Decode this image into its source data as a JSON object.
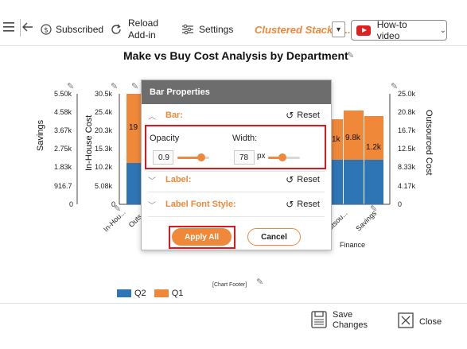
{
  "toolbar": {
    "subscribed_label": "Subscribed",
    "reload_label": "Reload\nAdd-in",
    "reload_line1": "Reload",
    "reload_line2": "Add-in",
    "settings_label": "Settings",
    "chart_type_label": "Clustered Stacked...",
    "howto_label": "How-to video"
  },
  "chart": {
    "title": "Make vs Buy Cost Analysis by Department",
    "left_axis1_title": "Savings",
    "left_axis2_title": "In-House Cost",
    "right_axis_title": "Outsourced Cost",
    "savings_ticks": [
      "5.50k",
      "4.58k",
      "3.67k",
      "2.75k",
      "1.83k",
      "916.7",
      "0"
    ],
    "inhouse_ticks": [
      "30.5k",
      "25.4k",
      "20.3k",
      "15.3k",
      "10.2k",
      "5.08k",
      "0"
    ],
    "outsourced_ticks": [
      "25.0k",
      "20.8k",
      "16.7k",
      "12.5k",
      "8.33k",
      "4.17k",
      "0"
    ],
    "x_labels_visible": [
      "In-Hou...",
      "Outs...",
      "Outsou...",
      "Savings"
    ],
    "group_label": "Finance",
    "bar_labels": [
      "19",
      "1k",
      "9.8k",
      "1.2k"
    ],
    "legend": [
      {
        "name": "Q2",
        "color": "#2e75b6"
      },
      {
        "name": "Q1",
        "color": "#f0883a"
      }
    ],
    "footer": "[Chart Footer]"
  },
  "chart_data": {
    "type": "bar",
    "title": "Make vs Buy Cost Analysis by Department",
    "ylabel_left": "In-House Cost",
    "ylabel_left_secondary": "Savings",
    "ylabel_right": "Outsourced Cost",
    "series": [
      {
        "name": "Q2",
        "color": "#2e75b6"
      },
      {
        "name": "Q1",
        "color": "#f0883a"
      }
    ],
    "ylim_inhouse": [
      0,
      30500
    ],
    "ylim_outsourced": [
      0,
      25000
    ],
    "ylim_savings": [
      0,
      5500
    ],
    "visible_data_labels": [
      "19",
      "1k",
      "9.8k",
      "1.2k"
    ]
  },
  "dialog": {
    "title": "Bar Properties",
    "sections": {
      "bar": "Bar:",
      "label": "Label:",
      "label_font": "Label Font Style:"
    },
    "reset_label": "Reset",
    "opacity_label": "Opacity",
    "opacity_value": "0.9",
    "opacity_level": 0.9,
    "width_label": "Width:",
    "width_value": "78",
    "width_unit": "px",
    "apply_label": "Apply All",
    "cancel_label": "Cancel"
  },
  "bottom": {
    "save_label_line1": "Save",
    "save_label_line2": "Changes",
    "close_label": "Close"
  },
  "colors": {
    "accent": "#f0883a",
    "q2_blue": "#2e75b6",
    "highlight_red": "#e0161b",
    "dialog_header": "#6d6d6d"
  }
}
